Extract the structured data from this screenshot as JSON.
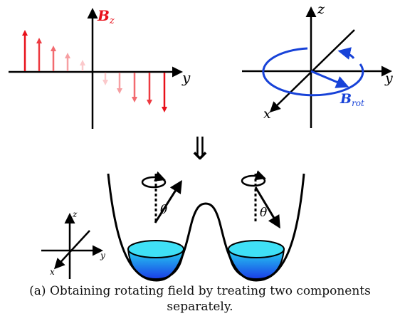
{
  "panel_left": {
    "field_label": "B",
    "field_sub": "z",
    "axis_y_label": "y",
    "arrow_colors_up": [
      "#e8101a",
      "#ed3a40",
      "#f26a6f",
      "#f69fa2",
      "#fbc9cb"
    ],
    "arrow_colors_down": [
      "#fbc9cb",
      "#f69fa2",
      "#f26a6f",
      "#ed3a40",
      "#e8101a"
    ]
  },
  "panel_right": {
    "axis_z_label": "z",
    "axis_y_label": "y",
    "axis_x_label": "x",
    "field_label": "B",
    "field_sub": "rot",
    "field_color": "#1742d8"
  },
  "implies_symbol": "⇓",
  "bottom_panel": {
    "theta_left": "θ",
    "theta_right": "θ",
    "axis_z_label": "z",
    "axis_y_label": "y",
    "axis_x_label": "x",
    "liquid_top_color": "#26d6f2",
    "liquid_bottom_color": "#1a3de6"
  },
  "caption": {
    "line1": "(a) Obtaining rotating field by treating two components",
    "line2": "separately."
  }
}
